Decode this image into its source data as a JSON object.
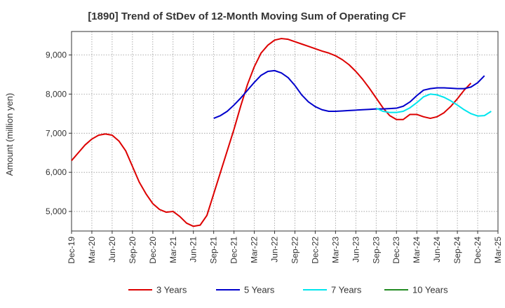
{
  "chart_data": {
    "type": "line",
    "title": "[1890]  Trend of StDev of 12-Month Moving Sum of Operating CF",
    "ylabel": "Amount (million yen)",
    "xlabel": "",
    "ylim": [
      4500,
      9600
    ],
    "yticks": [
      5000,
      6000,
      7000,
      8000,
      9000
    ],
    "ytick_labels": [
      "5,000",
      "6,000",
      "7,000",
      "8,000",
      "9,000"
    ],
    "xticks": [
      "Dec-19",
      "Mar-20",
      "Jun-20",
      "Sep-20",
      "Dec-20",
      "Mar-21",
      "Jun-21",
      "Sep-21",
      "Dec-21",
      "Mar-22",
      "Jun-22",
      "Sep-22",
      "Dec-22",
      "Mar-23",
      "Jun-23",
      "Sep-23",
      "Dec-23",
      "Mar-24",
      "Jun-24",
      "Sep-24",
      "Dec-24",
      "Mar-25"
    ],
    "grid": true,
    "legend_position": "bottom",
    "series": [
      {
        "name": "3 Years",
        "color": "#dd0000",
        "start_index": 0,
        "values": [
          6300,
          6500,
          6700,
          6850,
          6950,
          6980,
          6950,
          6800,
          6550,
          6150,
          5750,
          5450,
          5200,
          5050,
          4980,
          5000,
          4870,
          4700,
          4620,
          4650,
          4900,
          5450,
          6000,
          6550,
          7100,
          7700,
          8250,
          8700,
          9050,
          9250,
          9380,
          9420,
          9400,
          9340,
          9280,
          9220,
          9160,
          9100,
          9050,
          8980,
          8880,
          8750,
          8580,
          8380,
          8150,
          7900,
          7650,
          7450,
          7350,
          7350,
          7480,
          7480,
          7420,
          7380,
          7420,
          7520,
          7680,
          7880,
          8100,
          8280
        ]
      },
      {
        "name": "5 Years",
        "color": "#0000cc",
        "start_index": 21,
        "values": [
          7380,
          7450,
          7560,
          7720,
          7900,
          8100,
          8300,
          8480,
          8580,
          8600,
          8540,
          8420,
          8220,
          7980,
          7800,
          7680,
          7600,
          7560,
          7560,
          7570,
          7580,
          7590,
          7600,
          7610,
          7620,
          7620,
          7630,
          7640,
          7690,
          7800,
          7960,
          8100,
          8140,
          8160,
          8160,
          8150,
          8140,
          8140,
          8180,
          8290,
          8470
        ]
      },
      {
        "name": "7 Years",
        "color": "#00e5ee",
        "start_index": 45,
        "values": [
          7640,
          7560,
          7530,
          7530,
          7560,
          7650,
          7780,
          7930,
          8000,
          7980,
          7920,
          7830,
          7720,
          7600,
          7500,
          7440,
          7450,
          7560
        ]
      },
      {
        "name": "10 Years",
        "color": "#228b22",
        "start_index": 0,
        "values": []
      }
    ]
  }
}
